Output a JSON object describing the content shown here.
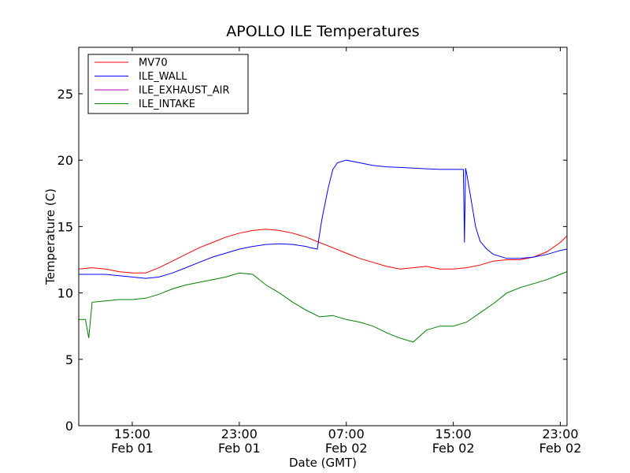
{
  "chart_data": {
    "type": "line",
    "title": "APOLLO ILE Temperatures",
    "xlabel": "Date (GMT)",
    "ylabel": "Temperature (C)",
    "ylim": [
      0,
      28.5
    ],
    "xlim": [
      "2014-02-01T11:00",
      "2014-02-02T23:30"
    ],
    "grid": false,
    "legend_position": "top-left",
    "x_ticks": [
      {
        "line1": "15:00",
        "line2": "Feb 01"
      },
      {
        "line1": "23:00",
        "line2": "Feb 01"
      },
      {
        "line1": "07:00",
        "line2": "Feb 02"
      },
      {
        "line1": "15:00",
        "line2": "Feb 02"
      },
      {
        "line1": "23:00",
        "line2": "Feb 02"
      }
    ],
    "y_ticks": [
      "0",
      "5",
      "10",
      "15",
      "20",
      "25"
    ],
    "series": [
      {
        "name": "MV70",
        "color": "#ff0000",
        "x": [
          "2014-02-01T11:00",
          "2014-02-01T12:00",
          "2014-02-01T13:00",
          "2014-02-01T14:00",
          "2014-02-01T15:00",
          "2014-02-01T16:00",
          "2014-02-01T17:00",
          "2014-02-01T18:00",
          "2014-02-01T19:00",
          "2014-02-01T20:00",
          "2014-02-01T21:00",
          "2014-02-01T22:00",
          "2014-02-01T23:00",
          "2014-02-02T00:00",
          "2014-02-02T01:00",
          "2014-02-02T02:00",
          "2014-02-02T03:00",
          "2014-02-02T04:00",
          "2014-02-02T05:00",
          "2014-02-02T06:00",
          "2014-02-02T07:00",
          "2014-02-02T08:00",
          "2014-02-02T09:00",
          "2014-02-02T10:00",
          "2014-02-02T11:00",
          "2014-02-02T12:00",
          "2014-02-02T13:00",
          "2014-02-02T14:00",
          "2014-02-02T15:00",
          "2014-02-02T16:00",
          "2014-02-02T17:00",
          "2014-02-02T18:00",
          "2014-02-02T19:00",
          "2014-02-02T20:00",
          "2014-02-02T21:00",
          "2014-02-02T22:00",
          "2014-02-02T23:00",
          "2014-02-02T23:30"
        ],
        "y": [
          11.8,
          11.9,
          11.8,
          11.6,
          11.5,
          11.5,
          11.9,
          12.4,
          12.9,
          13.4,
          13.8,
          14.2,
          14.5,
          14.7,
          14.8,
          14.7,
          14.5,
          14.2,
          13.8,
          13.4,
          13.0,
          12.6,
          12.3,
          12.0,
          11.8,
          11.9,
          12.0,
          11.8,
          11.8,
          11.9,
          12.1,
          12.4,
          12.5,
          12.5,
          12.7,
          13.1,
          13.8,
          14.3
        ]
      },
      {
        "name": "ILE_WALL",
        "color": "#0000ff",
        "x": [
          "2014-02-01T11:00",
          "2014-02-01T12:00",
          "2014-02-01T13:00",
          "2014-02-01T14:00",
          "2014-02-01T15:00",
          "2014-02-01T16:00",
          "2014-02-01T17:00",
          "2014-02-01T18:00",
          "2014-02-01T19:00",
          "2014-02-01T20:00",
          "2014-02-01T21:00",
          "2014-02-01T22:00",
          "2014-02-01T23:00",
          "2014-02-02T00:00",
          "2014-02-02T01:00",
          "2014-02-02T02:00",
          "2014-02-02T03:00",
          "2014-02-02T04:00",
          "2014-02-02T04:20",
          "2014-02-02T04:50",
          "2014-02-02T05:10",
          "2014-02-02T05:40",
          "2014-02-02T06:00",
          "2014-02-02T06:20",
          "2014-02-02T07:00",
          "2014-02-02T08:00",
          "2014-02-02T09:00",
          "2014-02-02T10:00",
          "2014-02-02T11:00",
          "2014-02-02T12:00",
          "2014-02-02T13:00",
          "2014-02-02T14:00",
          "2014-02-02T15:00",
          "2014-02-02T15:45",
          "2014-02-02T15:50",
          "2014-02-02T15:55",
          "2014-02-02T16:00",
          "2014-02-02T16:20",
          "2014-02-02T16:40",
          "2014-02-02T17:00",
          "2014-02-02T17:30",
          "2014-02-02T18:00",
          "2014-02-02T19:00",
          "2014-02-02T20:00",
          "2014-02-02T21:00",
          "2014-02-02T22:00",
          "2014-02-02T23:00",
          "2014-02-02T23:30"
        ],
        "y": [
          11.4,
          11.4,
          11.4,
          11.3,
          11.2,
          11.1,
          11.2,
          11.5,
          11.9,
          12.3,
          12.7,
          13.0,
          13.3,
          13.5,
          13.65,
          13.7,
          13.65,
          13.5,
          13.4,
          13.3,
          15.5,
          18.0,
          19.3,
          19.8,
          20.0,
          19.8,
          19.6,
          19.5,
          19.45,
          19.4,
          19.35,
          19.3,
          19.3,
          19.3,
          13.8,
          19.4,
          19.0,
          17.0,
          15.0,
          13.9,
          13.3,
          12.9,
          12.6,
          12.6,
          12.7,
          12.9,
          13.2,
          13.3
        ]
      },
      {
        "name": "ILE_EXHAUST_AIR",
        "color": "#bf00bf",
        "x": [],
        "y": []
      },
      {
        "name": "ILE_INTAKE",
        "color": "#008000",
        "x": [
          "2014-02-01T11:00",
          "2014-02-01T11:30",
          "2014-02-01T11:45",
          "2014-02-01T12:00",
          "2014-02-01T13:00",
          "2014-02-01T14:00",
          "2014-02-01T15:00",
          "2014-02-01T16:00",
          "2014-02-01T17:00",
          "2014-02-01T18:00",
          "2014-02-01T19:00",
          "2014-02-01T20:00",
          "2014-02-01T21:00",
          "2014-02-01T22:00",
          "2014-02-01T23:00",
          "2014-02-02T00:00",
          "2014-02-02T01:00",
          "2014-02-02T02:00",
          "2014-02-02T03:00",
          "2014-02-02T04:00",
          "2014-02-02T05:00",
          "2014-02-02T06:00",
          "2014-02-02T07:00",
          "2014-02-02T08:00",
          "2014-02-02T09:00",
          "2014-02-02T10:00",
          "2014-02-02T11:00",
          "2014-02-02T12:00",
          "2014-02-02T13:00",
          "2014-02-02T14:00",
          "2014-02-02T15:00",
          "2014-02-02T16:00",
          "2014-02-02T17:00",
          "2014-02-02T18:00",
          "2014-02-02T19:00",
          "2014-02-02T20:00",
          "2014-02-02T21:00",
          "2014-02-02T22:00",
          "2014-02-02T23:00",
          "2014-02-02T23:30"
        ],
        "y": [
          8.0,
          8.0,
          6.6,
          9.3,
          9.4,
          9.5,
          9.5,
          9.6,
          9.9,
          10.3,
          10.6,
          10.8,
          11.0,
          11.2,
          11.5,
          11.4,
          10.6,
          10.0,
          9.3,
          8.7,
          8.2,
          8.3,
          8.0,
          7.8,
          7.5,
          7.0,
          6.6,
          6.3,
          7.2,
          7.5,
          7.5,
          7.8,
          8.5,
          9.2,
          10.0,
          10.4,
          10.7,
          11.0,
          11.4,
          11.6
        ]
      }
    ]
  }
}
